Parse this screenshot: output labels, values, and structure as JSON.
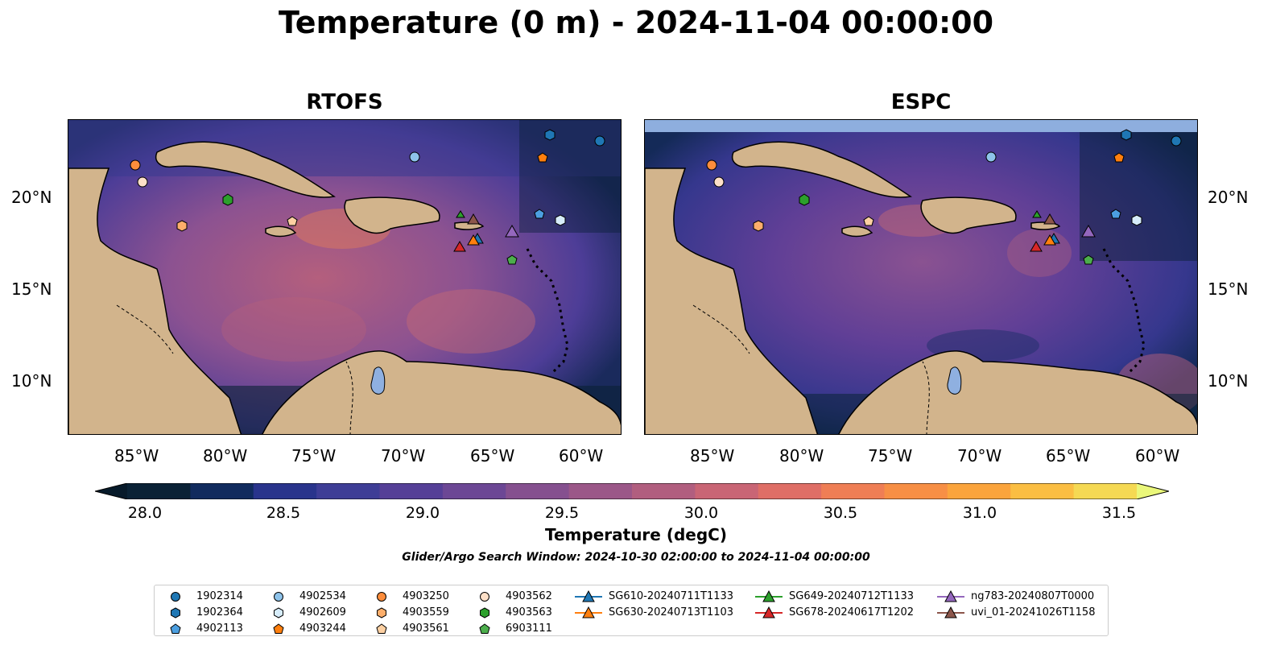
{
  "title": "Temperature (0 m) - 2024-11-04 00:00:00",
  "panels": [
    {
      "title": "RTOFS"
    },
    {
      "title": "ESPC"
    }
  ],
  "lon_ticks": [
    "85°W",
    "80°W",
    "75°W",
    "70°W",
    "65°W",
    "60°W"
  ],
  "lat_ticks": [
    "20°N",
    "15°N",
    "10°N"
  ],
  "colorbar": {
    "label": "Temperature (degC)",
    "ticks": [
      "28.0",
      "28.5",
      "29.0",
      "29.5",
      "30.0",
      "30.5",
      "31.0",
      "31.5"
    ],
    "colors": [
      "#0a2236",
      "#112b5e",
      "#29348c",
      "#3e3d96",
      "#553f97",
      "#6c4795",
      "#85508f",
      "#9b5788",
      "#b15e7f",
      "#c96575",
      "#df6e66",
      "#ef7e55",
      "#f78f45",
      "#fba43c",
      "#fbbe42",
      "#f5d953",
      "#e8f56c"
    ],
    "extend_low_color": "#071a2a",
    "extend_high_color": "#eaf77a"
  },
  "search_window": "Glider/Argo Search Window: 2024-10-30 02:00:00 to 2024-11-04 00:00:00",
  "legend": [
    {
      "label": "1902314",
      "marker": "circle",
      "color": "#1f77b4"
    },
    {
      "label": "1902364",
      "marker": "hexagon",
      "color": "#1f77b4"
    },
    {
      "label": "4902113",
      "marker": "pentagon",
      "color": "#4c9fe0"
    },
    {
      "label": "4902534",
      "marker": "circle",
      "color": "#8ec3ea"
    },
    {
      "label": "4902609",
      "marker": "hexagon",
      "color": "#d6ecfa"
    },
    {
      "label": "4903244",
      "marker": "pentagon",
      "color": "#ff7f0e"
    },
    {
      "label": "4903250",
      "marker": "circle",
      "color": "#fd8d3c"
    },
    {
      "label": "4903559",
      "marker": "hexagon",
      "color": "#fdae6b"
    },
    {
      "label": "4903561",
      "marker": "pentagon",
      "color": "#fdd0a2"
    },
    {
      "label": "4903562",
      "marker": "circle",
      "color": "#fde0c8"
    },
    {
      "label": "4903563",
      "marker": "hexagon",
      "color": "#2ca02c"
    },
    {
      "label": "6903111",
      "marker": "pentagon",
      "color": "#4cae4c"
    },
    {
      "label": "SG610-20240711T1133",
      "marker": "triangle-line",
      "color": "#1f77b4"
    },
    {
      "label": "SG630-20240713T1103",
      "marker": "triangle-line",
      "color": "#ff7f0e"
    },
    {
      "label": "SG649-20240712T1133",
      "marker": "triangle-line",
      "color": "#2ca02c"
    },
    {
      "label": "SG678-20240617T1202",
      "marker": "triangle-line",
      "color": "#d62728"
    },
    {
      "label": "ng783-20240807T0000",
      "marker": "triangle-line",
      "color": "#9467bd"
    },
    {
      "label": "uvi_01-20241026T1158",
      "marker": "triangle-line",
      "color": "#8c564b"
    }
  ],
  "map_colors": {
    "land": "#d2b48c",
    "lake": "#8fb0e0",
    "river": "#a0b8d8",
    "esp_top_band": "#8eaede"
  }
}
